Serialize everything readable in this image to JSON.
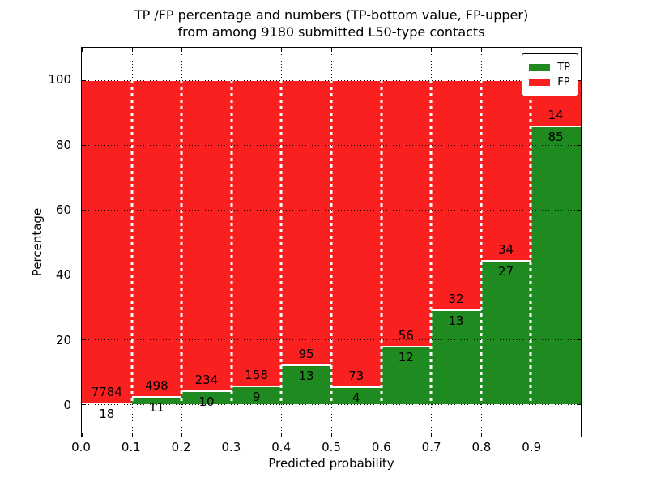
{
  "title": {
    "line1": "TP /FP percentage and numbers (TP-bottom value, FP-upper)",
    "line2": "from among 9180 submitted L50-type contacts"
  },
  "axes": {
    "x_label": "Predicted probability",
    "y_label": "Percentage",
    "x_ticks": [
      "0.0",
      "0.1",
      "0.2",
      "0.3",
      "0.4",
      "0.5",
      "0.6",
      "0.7",
      "0.8",
      "0.9"
    ],
    "y_ticks": [
      "0",
      "20",
      "40",
      "60",
      "80",
      "100"
    ]
  },
  "legend": {
    "position": "upper right",
    "items": [
      {
        "label": "TP",
        "color": "#1f8a1f"
      },
      {
        "label": "FP",
        "color": "#fb2020"
      }
    ]
  },
  "chart_data": {
    "type": "bar",
    "stacked": true,
    "title": "TP /FP percentage and numbers (TP-bottom value, FP-upper) from among 9180 submitted L50-type contacts",
    "xlabel": "Predicted probability",
    "ylabel": "Percentage",
    "xlim": [
      0.0,
      1.0
    ],
    "ylim": [
      -10,
      110
    ],
    "grid": true,
    "legend_position": "upper right",
    "total_submitted_contacts": 9180,
    "bin_edges": [
      0.0,
      0.1,
      0.2,
      0.3,
      0.4,
      0.5,
      0.6,
      0.7,
      0.8,
      0.9,
      1.0
    ],
    "categories": [
      "0.0-0.1",
      "0.1-0.2",
      "0.2-0.3",
      "0.3-0.4",
      "0.4-0.5",
      "0.5-0.6",
      "0.6-0.7",
      "0.7-0.8",
      "0.8-0.9",
      "0.9-1.0"
    ],
    "series": [
      {
        "name": "TP",
        "color": "#1f8a1f",
        "counts": [
          18,
          11,
          10,
          9,
          13,
          4,
          12,
          13,
          27,
          85
        ],
        "pct": [
          0.23,
          2.16,
          4.1,
          5.39,
          12.04,
          5.19,
          17.65,
          28.89,
          44.26,
          85.86
        ]
      },
      {
        "name": "FP",
        "color": "#fb2020",
        "counts": [
          7784,
          498,
          234,
          158,
          95,
          73,
          56,
          32,
          34,
          14
        ],
        "pct": [
          99.77,
          97.84,
          95.9,
          94.61,
          87.96,
          94.81,
          82.35,
          71.11,
          55.74,
          14.14
        ]
      }
    ]
  }
}
